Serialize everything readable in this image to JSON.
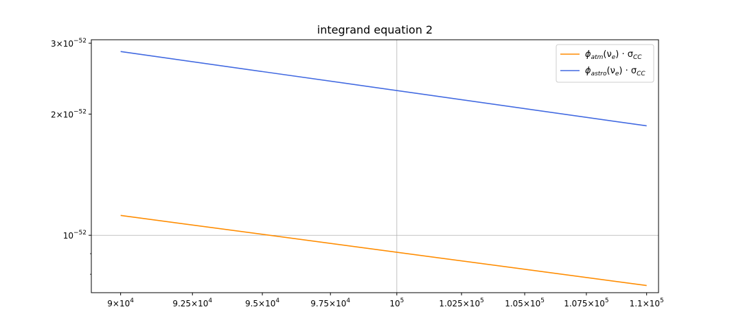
{
  "chart_data": {
    "type": "line",
    "title": "integrand equation 2",
    "xlabel": "",
    "ylabel": "",
    "x_scale": "log",
    "y_scale": "log",
    "xlim": [
      89000,
      110500
    ],
    "ylim": [
      7.2e-53,
      3.06e-52
    ],
    "grid": true,
    "legend_position": "top-right",
    "x_ticks": [
      {
        "value": 90000,
        "mantissa": "9",
        "exp": "4"
      },
      {
        "value": 92500,
        "mantissa": "9.25",
        "exp": "4"
      },
      {
        "value": 95000,
        "mantissa": "9.5",
        "exp": "4"
      },
      {
        "value": 97500,
        "mantissa": "9.75",
        "exp": "4"
      },
      {
        "value": 100000,
        "mantissa": "",
        "exp": "5"
      },
      {
        "value": 102500,
        "mantissa": "1.025",
        "exp": "5"
      },
      {
        "value": 105000,
        "mantissa": "1.05",
        "exp": "5"
      },
      {
        "value": 107500,
        "mantissa": "1.075",
        "exp": "5"
      },
      {
        "value": 110000,
        "mantissa": "1.1",
        "exp": "5"
      }
    ],
    "y_ticks": [
      {
        "value": 3e-52,
        "mantissa": "3",
        "exp": "−52"
      },
      {
        "value": 2e-52,
        "mantissa": "2",
        "exp": "−52"
      },
      {
        "value": 1e-52,
        "mantissa": "",
        "exp": "−52"
      }
    ],
    "y_minor_ticks": [
      8e-53,
      9e-53
    ],
    "x": [
      90000,
      110000
    ],
    "series": [
      {
        "name": "φatm(νe) · σCC",
        "label_parts": {
          "main": "ϕ",
          "sub": "atm",
          "arg": "(ν",
          "arg_sub": "e",
          "rest": ") · σ",
          "rest_sub": "CC"
        },
        "color": "#ff8c00",
        "values": [
          1.12e-52,
          7.5e-53
        ]
      },
      {
        "name": "φastro(νe) · σCC",
        "label_parts": {
          "main": "ϕ",
          "sub": "astro",
          "arg": "(ν",
          "arg_sub": "e",
          "rest": ") · σ",
          "rest_sub": "CC"
        },
        "color": "#4169e1",
        "values": [
          2.86e-52,
          1.87e-52
        ]
      }
    ]
  }
}
